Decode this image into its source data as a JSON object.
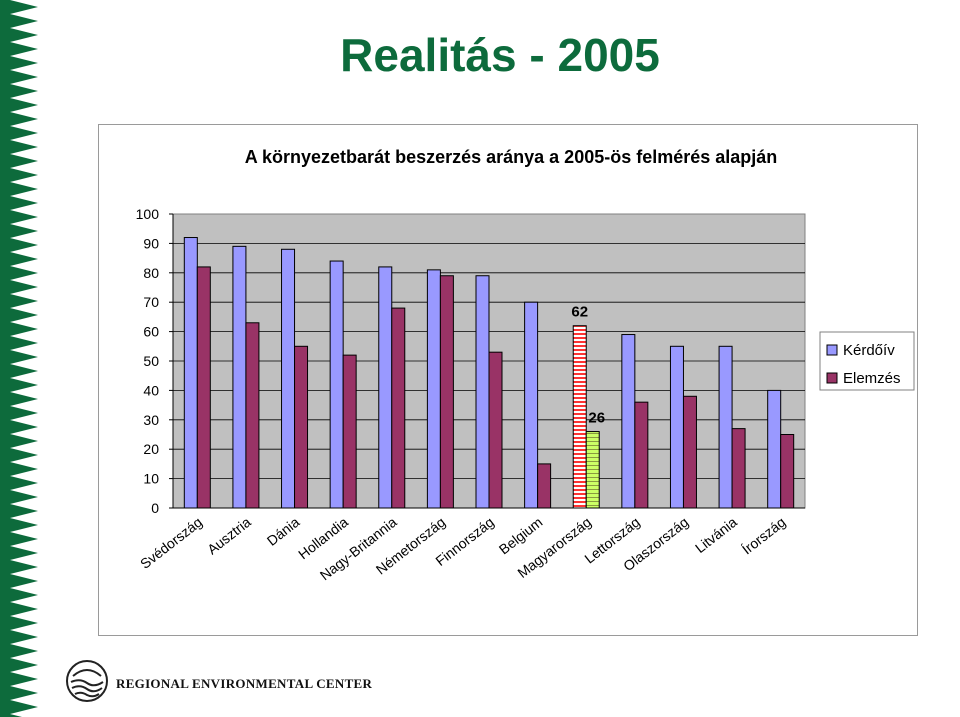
{
  "slide": {
    "title": "Realitás - 2005"
  },
  "footer": {
    "organization": "REGIONAL ENVIRONMENTAL CENTER"
  },
  "colors": {
    "title": "#0d6b3c",
    "border_pattern": "#0d6b3c",
    "plot_background": "#c0c0c0",
    "series_kerdoiv": "#9999ff",
    "series_elemzes": "#993366",
    "highlight_kerdoiv": "#ff3333",
    "highlight_elemzes": "#ccff66"
  },
  "chart_data": {
    "type": "bar",
    "title": "A környezetbarát beszerzés aránya a 2005-ös felmérés alapján",
    "categories": [
      "Svédország",
      "Ausztria",
      "Dánia",
      "Hollandia",
      "Nagy-Britannia",
      "Németország",
      "Finnország",
      "Belgium",
      "Magyarország",
      "Lettország",
      "Olaszország",
      "Litvánia",
      "Írország"
    ],
    "series": [
      {
        "name": "Kérdőív",
        "values": [
          92,
          89,
          88,
          84,
          82,
          81,
          79,
          70,
          62,
          59,
          55,
          55,
          40
        ]
      },
      {
        "name": "Elemzés",
        "values": [
          82,
          63,
          55,
          52,
          68,
          79,
          53,
          15,
          26,
          36,
          38,
          27,
          25
        ]
      }
    ],
    "data_labels": [
      {
        "category": "Magyarország",
        "series": "Kérdőív",
        "text": "62"
      },
      {
        "category": "Magyarország",
        "series": "Elemzés",
        "text": "26"
      }
    ],
    "highlight_category": "Magyarország",
    "yticks": [
      "0",
      "10",
      "20",
      "30",
      "40",
      "50",
      "60",
      "70",
      "80",
      "90",
      "100"
    ],
    "ylim": [
      0,
      100
    ],
    "xlabel": "",
    "ylabel": "",
    "grid": true,
    "legend_position": "right"
  }
}
